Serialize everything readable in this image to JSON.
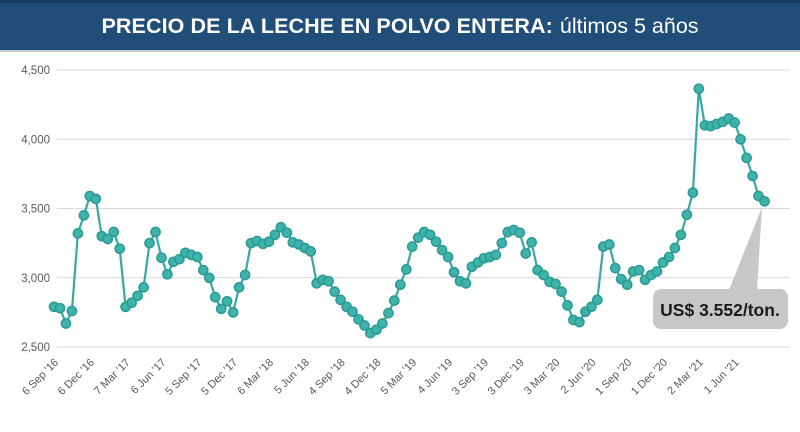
{
  "header": {
    "title_bold": "PRECIO DE LA LECHE EN POLVO ENTERA:",
    "title_regular": "últimos 5 años"
  },
  "callout": {
    "label": "US$ 3.552/ton."
  },
  "colors": {
    "background": "#FFFFFF",
    "title_bar_bg": "#204E78",
    "title_bar_top_strip": "#17395C",
    "title_text": "#FFFFFF",
    "line": "#35A9A2",
    "marker_fill": "#3EB3AB",
    "marker_stroke": "#2A9A93",
    "grid": "#D9D9D9",
    "axis_text": "#595959",
    "callout_bg": "#C7C7C7",
    "callout_text": "#1A1A1A"
  },
  "chart_data": {
    "type": "line",
    "title": "PRECIO DE LA LECHE EN POLVO ENTERA: últimos 5 años",
    "xlabel": "",
    "ylabel": "",
    "ylim": [
      2500,
      4500
    ],
    "yticks": [
      2500,
      3000,
      3500,
      4000,
      4500
    ],
    "ytick_labels": [
      "2,500",
      "3,000",
      "3,500",
      "4,000",
      "4,500"
    ],
    "grid": true,
    "legend": false,
    "marker": "circle",
    "n_points": 120,
    "x_tick_indices": [
      0,
      6,
      12,
      18,
      24,
      30,
      36,
      42,
      48,
      54,
      60,
      66,
      72,
      78,
      84,
      90,
      96,
      102,
      108,
      114
    ],
    "x_tick_labels": [
      "6 Sep '16",
      "6 Dec '16",
      "7 Mar '17",
      "6 Jun '17",
      "5 Sep '17",
      "5 Dec '17",
      "6 Mar '18",
      "5 Jun '18",
      "4 Sep '18",
      "4 Dec '18",
      "5 Mar '19",
      "4 Jun '19",
      "3 Sep '19",
      "3 Dec '19",
      "3 Mar '20",
      "2 Jun '20",
      "1 Sep '20",
      "1 Dec '20",
      "2 Mar '21",
      "1 Jun '21"
    ],
    "values": [
      2790,
      2780,
      2670,
      2760,
      3320,
      3450,
      3590,
      3570,
      3300,
      3280,
      3330,
      3210,
      2790,
      2820,
      2870,
      2930,
      3250,
      3330,
      3145,
      3025,
      3115,
      3135,
      3180,
      3165,
      3150,
      3055,
      3000,
      2860,
      2775,
      2830,
      2750,
      2930,
      3020,
      3250,
      3265,
      3245,
      3260,
      3310,
      3365,
      3325,
      3255,
      3240,
      3215,
      3190,
      2960,
      2985,
      2975,
      2900,
      2840,
      2790,
      2755,
      2700,
      2655,
      2600,
      2625,
      2670,
      2745,
      2835,
      2950,
      3060,
      3225,
      3290,
      3330,
      3310,
      3260,
      3200,
      3150,
      3040,
      2975,
      2960,
      3080,
      3110,
      3140,
      3150,
      3165,
      3250,
      3330,
      3345,
      3325,
      3175,
      3255,
      3055,
      3020,
      2970,
      2955,
      2900,
      2800,
      2695,
      2680,
      2755,
      2790,
      2840,
      3225,
      3240,
      3070,
      2990,
      2950,
      3045,
      3055,
      2985,
      3020,
      3045,
      3110,
      3150,
      3215,
      3310,
      3455,
      3615,
      4365,
      4100,
      4095,
      4110,
      4125,
      4150,
      4120,
      4000,
      3865,
      3735,
      3590,
      3552
    ],
    "annotation": {
      "text": "US$ 3.552/ton.",
      "points_to": "last-point",
      "value": 3552
    }
  }
}
